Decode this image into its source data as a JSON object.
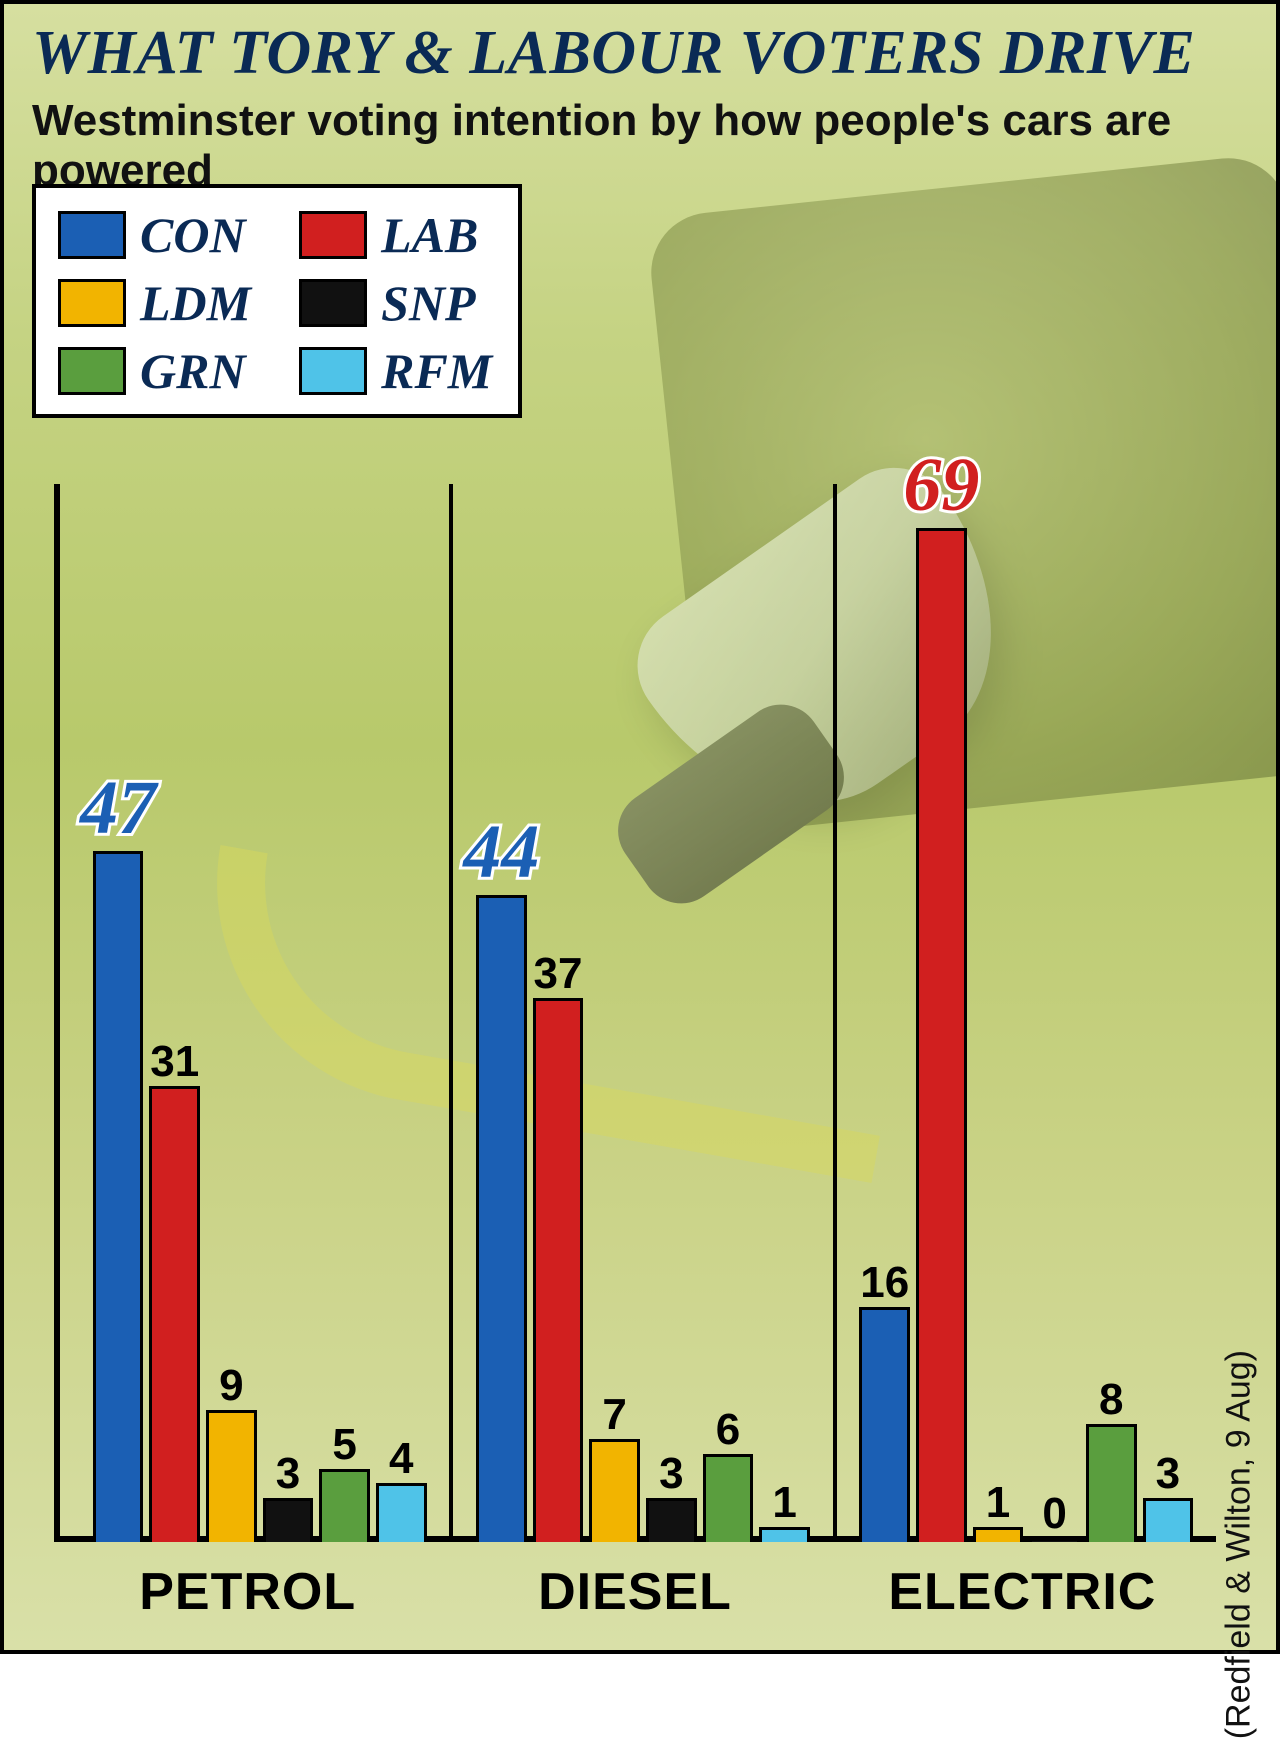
{
  "title": "WHAT TORY & LABOUR VOTERS DRIVE",
  "subtitle": "Westminster voting intention by how people's cars are powered",
  "source": "(Redfield & Wilton, 9 Aug)",
  "chart": {
    "type": "bar",
    "y_max": 72,
    "background_gradient": [
      "#d6dfa0",
      "#b8c96b",
      "#d9e0a8"
    ],
    "axis_color": "#000000",
    "bar_border_color": "#000000",
    "title_color": "#0a2a55",
    "value_label_fontsize": 44,
    "hero_label_fontsize": 76,
    "category_label_fontsize": 52,
    "legend_fontsize": 50,
    "parties": [
      {
        "key": "CON",
        "label": "CON",
        "color": "#1b5fb4"
      },
      {
        "key": "LAB",
        "label": "LAB",
        "color": "#d11f1f"
      },
      {
        "key": "LDM",
        "label": "LDM",
        "color": "#f2b400"
      },
      {
        "key": "SNP",
        "label": "SNP",
        "color": "#111111"
      },
      {
        "key": "GRN",
        "label": "GRN",
        "color": "#5a9e3e"
      },
      {
        "key": "RFM",
        "label": "RFM",
        "color": "#4fc3e8"
      }
    ],
    "legend_order": [
      "CON",
      "LAB",
      "LDM",
      "SNP",
      "GRN",
      "RFM"
    ],
    "groups": [
      {
        "label": "PETROL",
        "values": {
          "CON": 47,
          "LAB": 31,
          "LDM": 9,
          "SNP": 3,
          "GRN": 5,
          "RFM": 4
        },
        "hero": "CON"
      },
      {
        "label": "DIESEL",
        "values": {
          "CON": 44,
          "LAB": 37,
          "LDM": 7,
          "SNP": 3,
          "GRN": 6,
          "RFM": 1
        },
        "hero": "CON"
      },
      {
        "label": "ELECTRIC",
        "values": {
          "CON": 16,
          "LAB": 69,
          "LDM": 1,
          "SNP": 0,
          "GRN": 8,
          "RFM": 3
        },
        "hero": "LAB"
      }
    ]
  }
}
